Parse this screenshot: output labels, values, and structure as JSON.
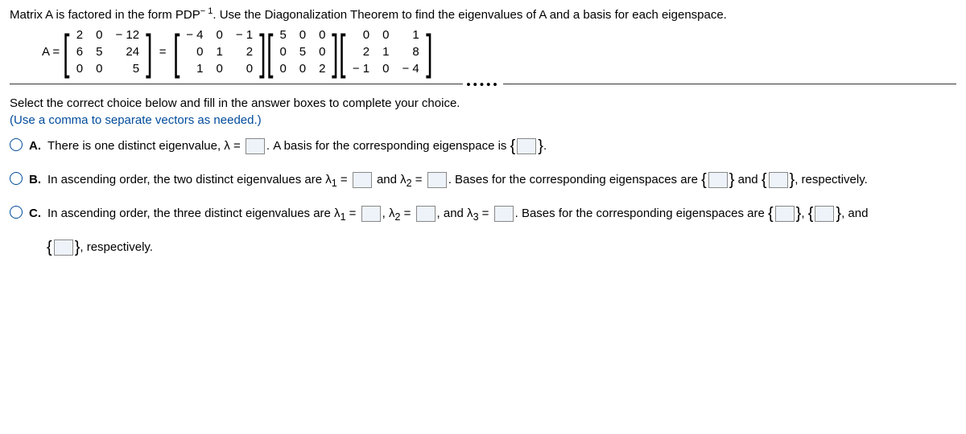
{
  "intro": {
    "pre": "Matrix A is factored in the form PDP",
    "exp": "− 1",
    "post": ". Use the Diagonalization Theorem to find the eigenvalues of A and a basis for each eigenspace."
  },
  "eq": {
    "lhs": "A =",
    "A": [
      [
        "2",
        "0",
        "− 12"
      ],
      [
        "6",
        "5",
        "24"
      ],
      [
        "0",
        "0",
        "5"
      ]
    ],
    "eqs": "=",
    "P": [
      [
        "− 4",
        "0",
        "− 1"
      ],
      [
        "0",
        "1",
        "2"
      ],
      [
        "1",
        "0",
        "0"
      ]
    ],
    "D": [
      [
        "5",
        "0",
        "0"
      ],
      [
        "0",
        "5",
        "0"
      ],
      [
        "0",
        "0",
        "2"
      ]
    ],
    "Pi": [
      [
        "0",
        "0",
        "1"
      ],
      [
        "2",
        "1",
        "8"
      ],
      [
        "− 1",
        "0",
        "− 4"
      ]
    ]
  },
  "prompt": {
    "line1": "Select the correct choice below and fill in the answer boxes to complete your choice.",
    "line2": "(Use a comma to separate vectors as needed.)"
  },
  "choices": {
    "A": {
      "label": "A.",
      "t1": "There is one distinct eigenvalue, λ =",
      "t2": ". A basis for the corresponding eigenspace is ",
      "t3": "."
    },
    "B": {
      "label": "B.",
      "t1": "In ascending order, the two distinct eigenvalues are λ",
      "s1": "1",
      "t2": " =",
      "t3": " and λ",
      "s2": "2",
      "t4": " =",
      "t5": ". Bases for the corresponding eigenspaces are ",
      "t6": " and ",
      "t7": ", respectively."
    },
    "C": {
      "label": "C.",
      "t1": "In ascending order, the three distinct eigenvalues are λ",
      "s1": "1",
      "t2": " =",
      "t3": ", λ",
      "s2": "2",
      "t4": " =",
      "t5": ", and λ",
      "s3": "3",
      "t6": " =",
      "t7": ". Bases for the corresponding eigenspaces are ",
      "t8": ", ",
      "t9": ", and",
      "cont": ", respectively."
    }
  }
}
